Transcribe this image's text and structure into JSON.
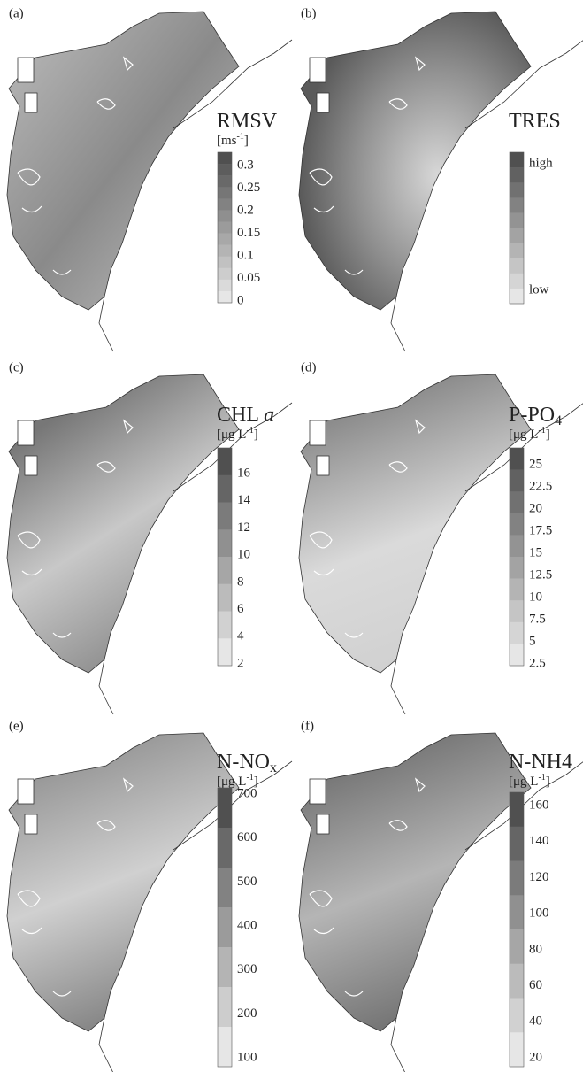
{
  "panels": [
    {
      "label": "(a)",
      "title": {
        "text": "RMSV"
      },
      "unit": {
        "text": "[ms",
        "sup": "-1",
        "end": "]"
      },
      "legend": [
        "0.3",
        "0.25",
        "0.2",
        "0.15",
        "0.1",
        "0.05",
        "0"
      ]
    },
    {
      "label": "(b)",
      "title": {
        "text": "TRES"
      },
      "legend": [
        "high",
        "low"
      ]
    },
    {
      "label": "(c)",
      "title": {
        "text": "CHL ",
        "italic": "a"
      },
      "unit": {
        "text": "[μg L",
        "sup": "-1",
        "end": "]"
      },
      "legend": [
        "16",
        "14",
        "12",
        "10",
        "8",
        "6",
        "4",
        "2"
      ]
    },
    {
      "label": "(d)",
      "title": {
        "text": "P-PO",
        "sub": "4"
      },
      "unit": {
        "text": "[μg L",
        "sup": "-1",
        "end": "]"
      },
      "legend": [
        "25",
        "22.5",
        "20",
        "17.5",
        "15",
        "12.5",
        "10",
        "7.5",
        "5",
        "2.5"
      ]
    },
    {
      "label": "(e)",
      "title": {
        "text": "N-NO",
        "sub": "x"
      },
      "unit": {
        "text": "[μg L",
        "sup": "-1",
        "end": "]"
      },
      "legend": [
        "700",
        "600",
        "500",
        "400",
        "300",
        "200",
        "100"
      ]
    },
    {
      "label": "(f)",
      "title": {
        "text": "N-NH4"
      },
      "unit": {
        "text": "[μg L",
        "sup": "-1",
        "end": "]"
      },
      "legend": [
        "160",
        "140",
        "120",
        "100",
        "80",
        "60",
        "40",
        "20"
      ]
    }
  ]
}
